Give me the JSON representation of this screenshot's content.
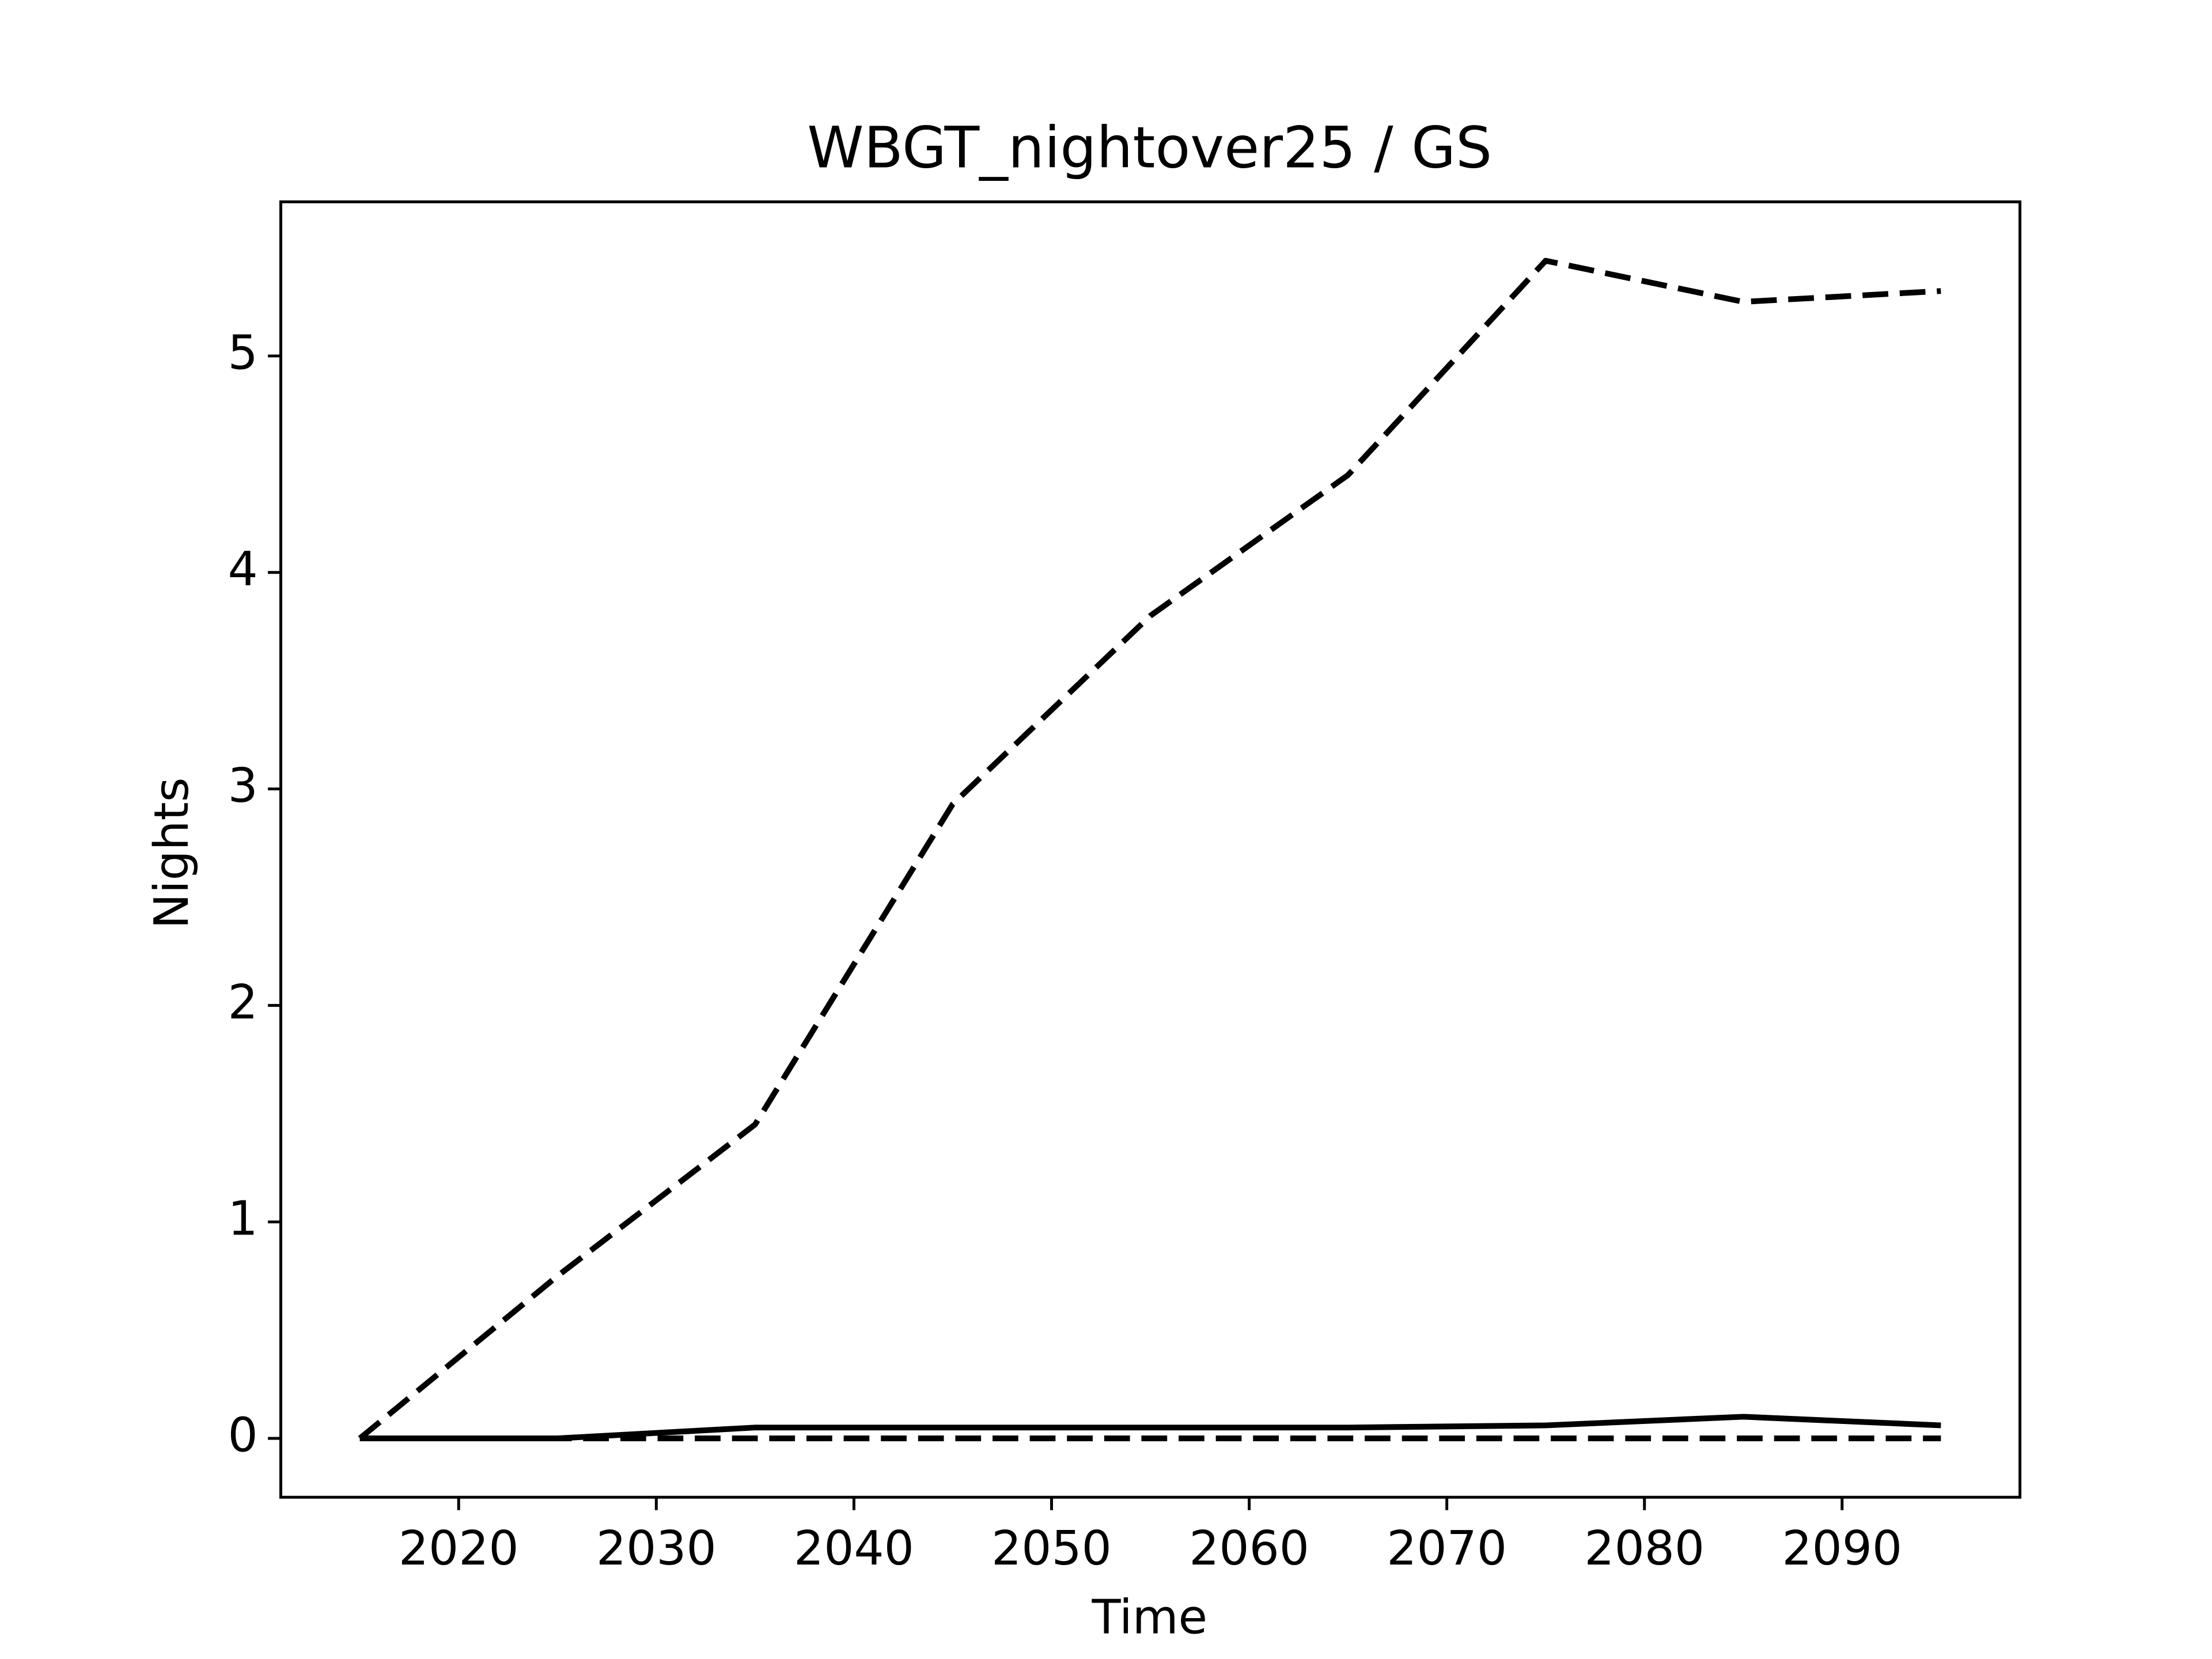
{
  "chart_data": {
    "type": "line",
    "title": "WBGT_nightover25 / GS",
    "xlabel": "Time",
    "ylabel": "Nights",
    "x": [
      2015,
      2025,
      2035,
      2045,
      2055,
      2065,
      2075,
      2085,
      2095
    ],
    "series": [
      {
        "color": "#000000",
        "linestyle": "dashed",
        "values": [
          0,
          0.75,
          1.45,
          2.93,
          3.8,
          4.45,
          5.44,
          5.25,
          5.3
        ]
      },
      {
        "color": "#000000",
        "linestyle": "solid",
        "values": [
          0,
          0,
          0.05,
          0.05,
          0.05,
          0.05,
          0.06,
          0.1,
          0.06
        ]
      },
      {
        "color": "#000000",
        "linestyle": "dashed",
        "values": [
          0,
          0,
          0,
          0,
          0,
          0,
          0,
          0,
          0
        ]
      }
    ],
    "xlim": [
      2011,
      2099
    ],
    "xticks": [
      2020,
      2030,
      2040,
      2050,
      2060,
      2070,
      2080,
      2090
    ],
    "ylim": [
      -0.272,
      5.712
    ],
    "yticks": [
      0,
      1,
      2,
      3,
      4,
      5
    ],
    "grid": false
  }
}
